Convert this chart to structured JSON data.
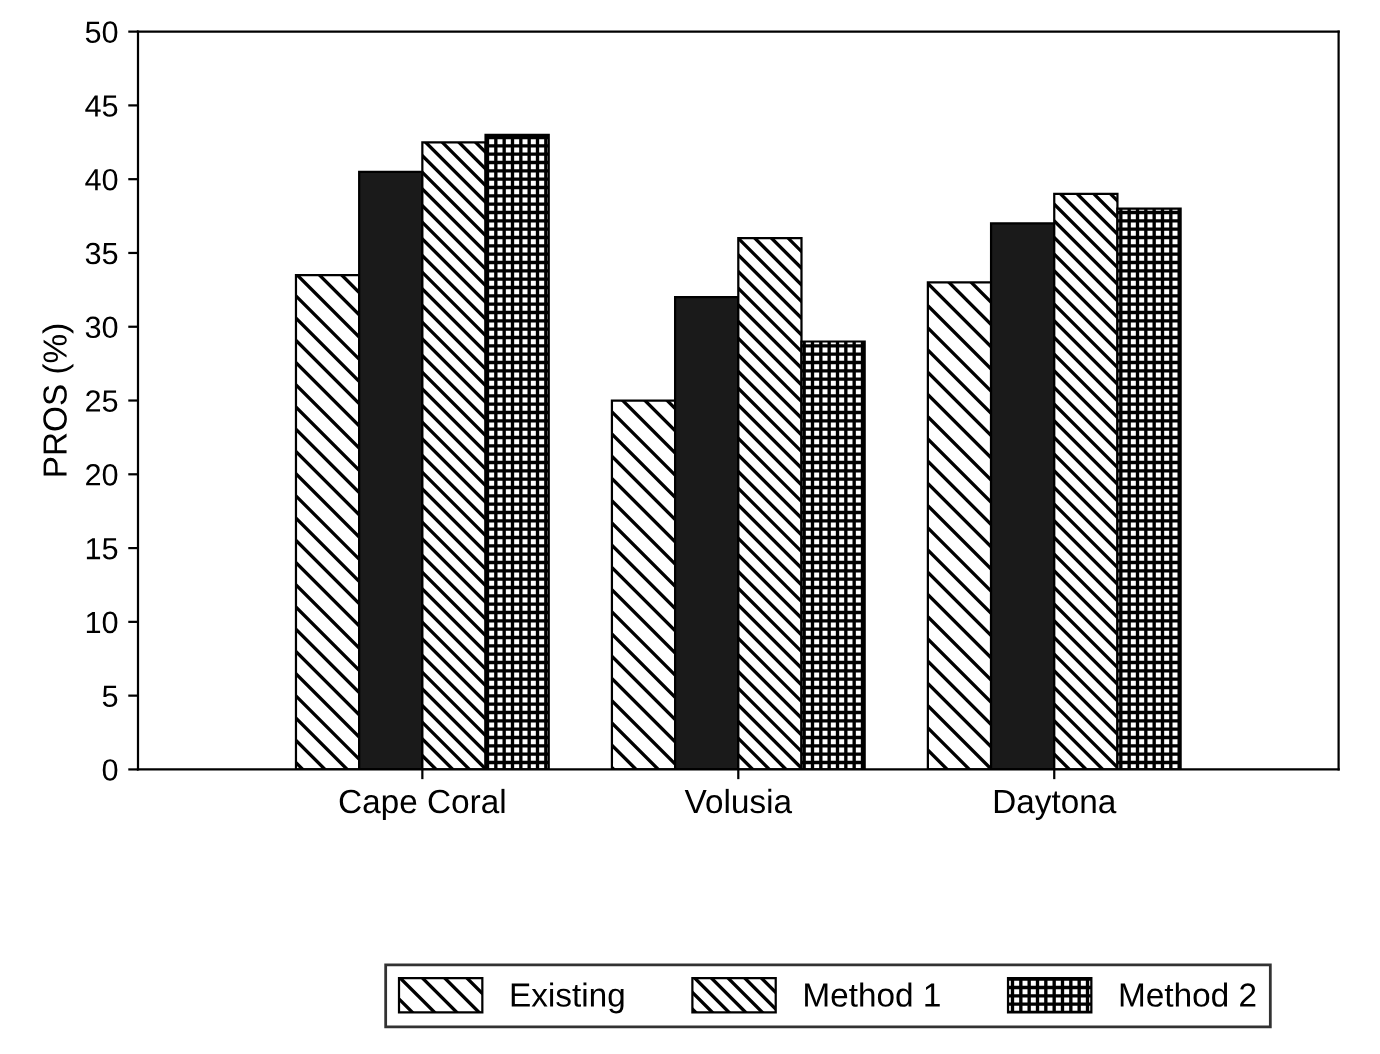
{
  "chart_data": {
    "type": "bar",
    "ylabel": "PROS (%)",
    "categories": [
      "Cape Coral",
      "Volusia",
      "Daytona"
    ],
    "series": [
      {
        "name": "Existing",
        "color": "#000000",
        "values": [
          33.5,
          25,
          33
        ]
      },
      {
        "color": "#1a1a1a",
        "values": [
          40.5,
          32,
          37
        ]
      },
      {
        "name": "Method 1",
        "color": "#000000",
        "values": [
          42.5,
          36,
          39
        ]
      },
      {
        "name": "Method 2",
        "color": "#000000",
        "values": [
          43,
          29,
          38
        ]
      }
    ],
    "ylim": [
      0,
      50
    ],
    "yticks": [
      0,
      5,
      10,
      15,
      20,
      25,
      30,
      35,
      40,
      45,
      50
    ],
    "grid": false,
    "legend": "bottom"
  }
}
